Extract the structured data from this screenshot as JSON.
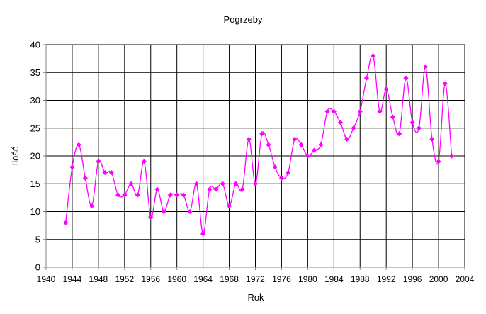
{
  "chart_data": {
    "type": "line",
    "title": "Pogrzeby",
    "xlabel": "Rok",
    "ylabel": "Ilość",
    "xlim": [
      1940,
      2004
    ],
    "ylim": [
      0,
      40
    ],
    "x_ticks": [
      1940,
      1944,
      1948,
      1952,
      1956,
      1960,
      1964,
      1968,
      1972,
      1976,
      1980,
      1984,
      1988,
      1992,
      1996,
      2000,
      2004
    ],
    "y_ticks": [
      0,
      5,
      10,
      15,
      20,
      25,
      30,
      35,
      40
    ],
    "grid": true,
    "legend": "none",
    "colors": {
      "series": "#ff00ff",
      "grid": "#000000",
      "axis": "#808080"
    },
    "series": [
      {
        "x": [
          1943,
          1944,
          1945,
          1946,
          1947,
          1948,
          1949,
          1950,
          1951,
          1952,
          1953,
          1954,
          1955,
          1956,
          1957,
          1958,
          1959,
          1960,
          1961,
          1962,
          1963,
          1964,
          1965,
          1966,
          1967,
          1968,
          1969,
          1970,
          1971,
          1972,
          1973,
          1974,
          1975,
          1976,
          1977,
          1978,
          1979,
          1980,
          1981,
          1982,
          1983,
          1984,
          1985,
          1986,
          1987,
          1988,
          1989,
          1990,
          1991,
          1992,
          1993,
          1994,
          1995,
          1996,
          1997,
          1998,
          1999,
          2000,
          2001,
          2002
        ],
        "values": [
          8,
          18,
          22,
          16,
          11,
          19,
          17,
          17,
          13,
          13,
          15,
          13,
          19,
          9,
          14,
          10,
          13,
          13,
          13,
          10,
          15,
          6,
          14,
          14,
          15,
          11,
          15,
          14,
          23,
          15,
          24,
          22,
          18,
          16,
          17,
          23,
          22,
          20,
          21,
          22,
          28,
          28,
          26,
          23,
          25,
          28,
          34,
          38,
          28,
          32,
          27,
          24,
          34,
          26,
          25,
          36,
          23,
          19,
          33,
          20
        ]
      }
    ]
  }
}
